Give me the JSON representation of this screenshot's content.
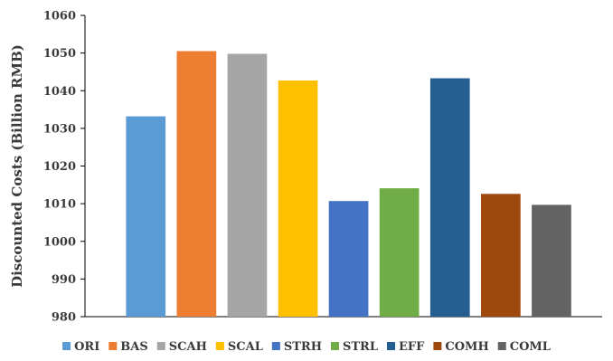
{
  "chart_data": {
    "type": "bar",
    "title": "",
    "xlabel": "",
    "ylabel": "Discounted Costs (Billion RMB)",
    "ylim": [
      980,
      1060
    ],
    "yticks": [
      980,
      990,
      1000,
      1010,
      1020,
      1030,
      1040,
      1050,
      1060
    ],
    "grid": false,
    "legend_position": "bottom",
    "categories": [
      "ORI",
      "BAS",
      "SCAH",
      "SCAL",
      "STRH",
      "STRL",
      "EFF",
      "COMH",
      "COML"
    ],
    "values": [
      1033.2,
      1050.5,
      1049.8,
      1042.7,
      1010.7,
      1014.1,
      1043.3,
      1012.6,
      1009.7
    ],
    "colors": [
      "#5B9BD5",
      "#ED7D31",
      "#A5A5A5",
      "#FFC000",
      "#4472C4",
      "#70AD47",
      "#255E91",
      "#9E480E",
      "#636363"
    ]
  }
}
